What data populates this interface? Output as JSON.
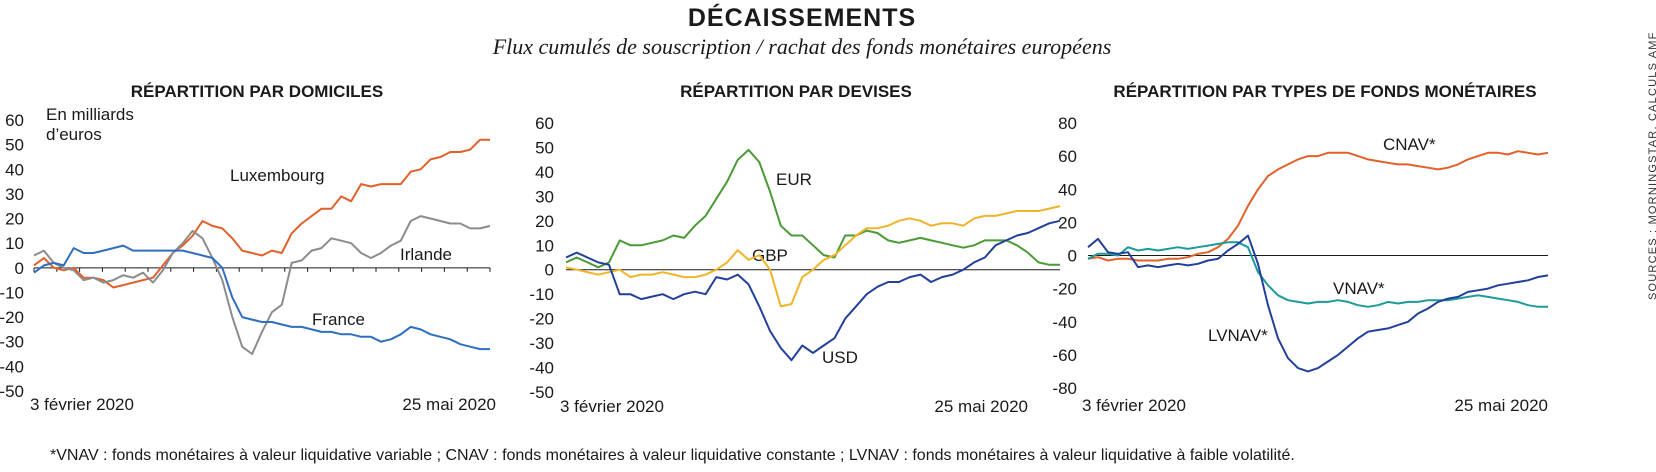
{
  "header": {
    "title": "DÉCAISSEMENTS",
    "subtitle": "Flux cumulés de souscription / rachat des fonds monétaires européens"
  },
  "footnote": "*VNAV : fonds monétaires à valeur liquidative variable ; CNAV : fonds monétaires à valeur liquidative constante ; LVNAV : fonds monétaires à valeur liquidative à faible volatilité.",
  "source": "SOURCES : MORNINGSTAR, CALCULS AMF",
  "colors": {
    "orange": "#e2602a",
    "gray": "#8c8c8c",
    "blue": "#2f6fc0",
    "green": "#4a9a35",
    "yellow": "#f0b429",
    "navy": "#22409a",
    "teal": "#1d9a9a"
  },
  "chart_data": [
    {
      "type": "line",
      "title": "RÉPARTITION PAR DOMICILES",
      "unit_label": [
        "En milliards",
        "d’euros"
      ],
      "ylim": [
        -50,
        60
      ],
      "yticks": [
        60,
        50,
        40,
        30,
        20,
        10,
        0,
        -10,
        -20,
        -30,
        -40,
        -50
      ],
      "x_start_label": "3 février 2020",
      "x_end_label": "25 mai 2020",
      "series": [
        {
          "name": "Luxembourg",
          "color": "#e2602a",
          "values": [
            1,
            4,
            0,
            -1,
            0,
            -4,
            -4,
            -5,
            -8,
            -7,
            -6,
            -5,
            -4,
            1,
            6,
            9,
            13,
            19,
            17,
            16,
            12,
            7,
            6,
            5,
            7,
            6,
            14,
            18,
            21,
            24,
            24,
            29,
            27,
            34,
            33,
            34,
            34,
            34,
            39,
            40,
            44,
            45,
            47,
            47,
            48,
            52,
            52
          ]
        },
        {
          "name": "Irlande",
          "color": "#8c8c8c",
          "values": [
            5,
            7,
            2,
            0,
            -1,
            -5,
            -4,
            -6,
            -5,
            -3,
            -4,
            -2,
            -6,
            -1,
            6,
            10,
            15,
            12,
            4,
            -5,
            -20,
            -32,
            -35,
            -26,
            -18,
            -15,
            2,
            3,
            7,
            8,
            12,
            11,
            10,
            6,
            4,
            6,
            9,
            11,
            19,
            21,
            20,
            19,
            18,
            18,
            16,
            16,
            17
          ]
        },
        {
          "name": "France",
          "color": "#2f6fc0",
          "values": [
            -2,
            1,
            2,
            1,
            8,
            6,
            6,
            7,
            8,
            9,
            7,
            7,
            7,
            7,
            7,
            7,
            6,
            5,
            4,
            0,
            -12,
            -20,
            -21,
            -22,
            -22,
            -23,
            -24,
            -24,
            -25,
            -26,
            -26,
            -27,
            -27,
            -28,
            -28,
            -30,
            -29,
            -27,
            -24,
            -25,
            -27,
            -28,
            -29,
            -31,
            -32,
            -33,
            -33
          ]
        }
      ],
      "labels": {
        "luxembourg": "Luxembourg",
        "irlande": "Irlande",
        "france": "France"
      }
    },
    {
      "type": "line",
      "title": "RÉPARTITION PAR DEVISES",
      "ylim": [
        -50,
        60
      ],
      "yticks": [
        60,
        50,
        40,
        30,
        20,
        10,
        0,
        -10,
        -20,
        -30,
        -40,
        -50
      ],
      "x_start_label": "3 février 2020",
      "x_end_label": "25 mai 2020",
      "series": [
        {
          "name": "EUR",
          "color": "#4a9a35",
          "values": [
            3,
            5,
            3,
            1,
            3,
            12,
            10,
            10,
            11,
            12,
            14,
            13,
            18,
            22,
            29,
            36,
            45,
            49,
            44,
            32,
            18,
            14,
            14,
            10,
            6,
            5,
            14,
            14,
            16,
            15,
            12,
            11,
            12,
            13,
            12,
            11,
            10,
            9,
            10,
            12,
            12,
            12,
            10,
            7,
            3,
            2,
            2
          ]
        },
        {
          "name": "GBP",
          "color": "#f0b429",
          "values": [
            1,
            0,
            -1,
            -2,
            -1,
            0,
            -3,
            -2,
            -2,
            -1,
            -2,
            -3,
            -3,
            -2,
            0,
            3,
            8,
            4,
            6,
            0,
            -15,
            -14,
            -3,
            0,
            4,
            6,
            10,
            14,
            17,
            17,
            18,
            20,
            21,
            20,
            18,
            19,
            19,
            18,
            21,
            22,
            22,
            23,
            24,
            24,
            24,
            25,
            26
          ]
        },
        {
          "name": "USD",
          "color": "#22409a",
          "values": [
            5,
            7,
            5,
            3,
            2,
            -10,
            -10,
            -12,
            -11,
            -10,
            -12,
            -10,
            -9,
            -10,
            -3,
            -4,
            -2,
            -6,
            -15,
            -25,
            -32,
            -37,
            -31,
            -34,
            -31,
            -28,
            -20,
            -15,
            -10,
            -7,
            -5,
            -5,
            -3,
            -2,
            -5,
            -3,
            -2,
            0,
            3,
            5,
            10,
            12,
            14,
            15,
            17,
            19,
            20
          ]
        }
      ],
      "labels": {
        "eur": "EUR",
        "gbp": "GBP",
        "usd": "USD"
      }
    },
    {
      "type": "line",
      "title": "RÉPARTITION PAR TYPES DE FONDS MONÉTAIRES",
      "ylim": [
        -80,
        80
      ],
      "yticks": [
        80,
        60,
        40,
        20,
        0,
        -20,
        -40,
        -60,
        -80
      ],
      "x_start_label": "3 février 2020",
      "x_end_label": "25 mai 2020",
      "series": [
        {
          "name": "CNAV*",
          "color": "#e2602a",
          "values": [
            -2,
            -1,
            -3,
            -2,
            -2,
            -3,
            -3,
            -3,
            -2,
            -2,
            -1,
            1,
            2,
            5,
            10,
            18,
            30,
            40,
            48,
            52,
            55,
            58,
            60,
            60,
            62,
            62,
            62,
            60,
            58,
            57,
            56,
            55,
            55,
            54,
            53,
            52,
            53,
            55,
            58,
            60,
            62,
            62,
            61,
            63,
            62,
            61,
            62
          ]
        },
        {
          "name": "VNAV*",
          "color": "#1d9a9a",
          "values": [
            -2,
            1,
            1,
            0,
            5,
            3,
            4,
            3,
            4,
            5,
            4,
            5,
            6,
            7,
            8,
            8,
            5,
            -10,
            -18,
            -24,
            -27,
            -28,
            -29,
            -28,
            -28,
            -27,
            -28,
            -30,
            -31,
            -30,
            -28,
            -29,
            -28,
            -28,
            -27,
            -27,
            -27,
            -26,
            -25,
            -24,
            -25,
            -26,
            -27,
            -28,
            -30,
            -31,
            -31
          ]
        },
        {
          "name": "LVNAV*",
          "color": "#22409a",
          "values": [
            5,
            10,
            2,
            1,
            2,
            -7,
            -6,
            -7,
            -6,
            -5,
            -6,
            -5,
            -3,
            -2,
            3,
            7,
            12,
            -5,
            -30,
            -50,
            -62,
            -68,
            -70,
            -68,
            -64,
            -60,
            -55,
            -50,
            -46,
            -45,
            -44,
            -42,
            -40,
            -35,
            -32,
            -28,
            -26,
            -25,
            -22,
            -21,
            -20,
            -18,
            -17,
            -16,
            -15,
            -13,
            -12
          ]
        }
      ],
      "labels": {
        "cnav": "CNAV*",
        "vnav": "VNAV*",
        "lvnav": "LVNAV*"
      }
    }
  ]
}
